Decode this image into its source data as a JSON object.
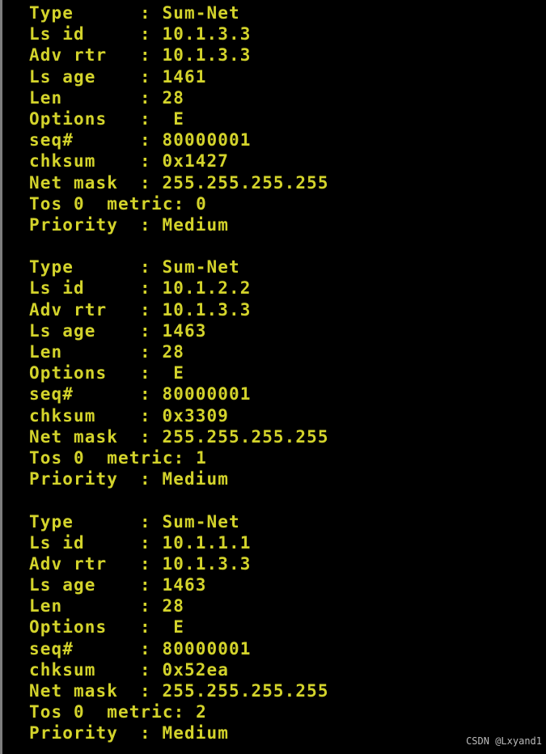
{
  "terminal": {
    "format": {
      "separator": ": ",
      "label_pad": 10
    },
    "blocks": [
      {
        "fields": [
          {
            "label": "Type",
            "value": "Sum-Net"
          },
          {
            "label": "Ls id",
            "value": "10.1.3.3"
          },
          {
            "label": "Adv rtr",
            "value": "10.1.3.3"
          },
          {
            "label": "Ls age",
            "value": "1461"
          },
          {
            "label": "Len",
            "value": "28"
          },
          {
            "label": "Options",
            "value": " E"
          },
          {
            "label": "seq#",
            "value": "80000001"
          },
          {
            "label": "chksum",
            "value": "0x1427"
          },
          {
            "label": "Net mask",
            "value": "255.255.255.255"
          },
          {
            "label": "Tos 0  metric",
            "value": "0"
          },
          {
            "label": "Priority",
            "value": "Medium"
          }
        ]
      },
      {
        "fields": [
          {
            "label": "Type",
            "value": "Sum-Net"
          },
          {
            "label": "Ls id",
            "value": "10.1.2.2"
          },
          {
            "label": "Adv rtr",
            "value": "10.1.3.3"
          },
          {
            "label": "Ls age",
            "value": "1463"
          },
          {
            "label": "Len",
            "value": "28"
          },
          {
            "label": "Options",
            "value": " E"
          },
          {
            "label": "seq#",
            "value": "80000001"
          },
          {
            "label": "chksum",
            "value": "0x3309"
          },
          {
            "label": "Net mask",
            "value": "255.255.255.255"
          },
          {
            "label": "Tos 0  metric",
            "value": "1"
          },
          {
            "label": "Priority",
            "value": "Medium"
          }
        ]
      },
      {
        "fields": [
          {
            "label": "Type",
            "value": "Sum-Net"
          },
          {
            "label": "Ls id",
            "value": "10.1.1.1"
          },
          {
            "label": "Adv rtr",
            "value": "10.1.3.3"
          },
          {
            "label": "Ls age",
            "value": "1463"
          },
          {
            "label": "Len",
            "value": "28"
          },
          {
            "label": "Options",
            "value": " E"
          },
          {
            "label": "seq#",
            "value": "80000001"
          },
          {
            "label": "chksum",
            "value": "0x52ea"
          },
          {
            "label": "Net mask",
            "value": "255.255.255.255"
          },
          {
            "label": "Tos 0  metric",
            "value": "2"
          },
          {
            "label": "Priority",
            "value": "Medium"
          }
        ]
      }
    ]
  },
  "watermark": {
    "text": "CSDN @Lxyand1"
  },
  "colors": {
    "background": "#000000",
    "text_yellow": "#d3d32b",
    "border_strip": "#7e7e7e",
    "watermark": "#dbdbdb"
  }
}
